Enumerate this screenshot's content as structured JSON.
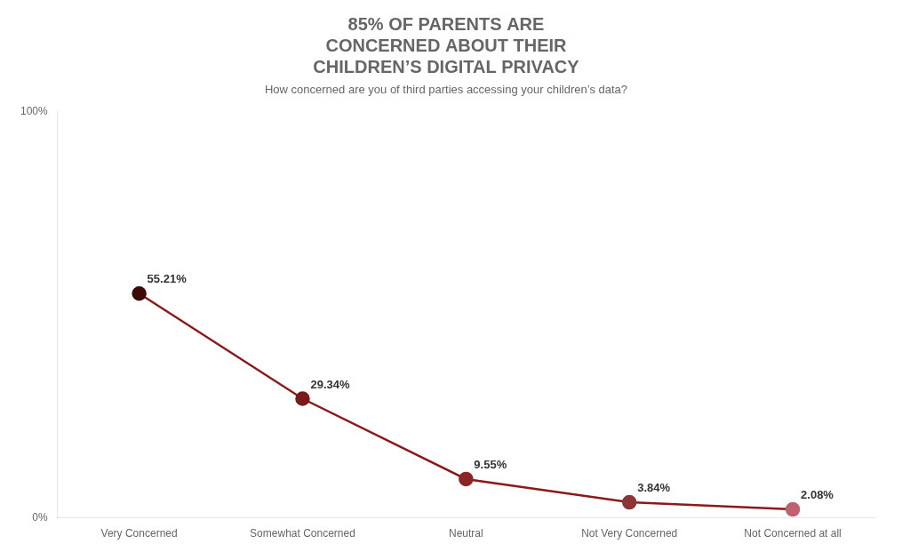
{
  "chart_data": {
    "type": "line",
    "title": "85% OF PARENTS ARE\nCONCERNED ABOUT THEIR\nCHILDREN’S DIGITAL PRIVACY",
    "subtitle": "How concerned are you of third parties accessing your children’s data?",
    "categories": [
      "Very Concerned",
      "Somewhat Concerned",
      "Neutral",
      "Not Very Concerned",
      "Not Concerned at all"
    ],
    "values": [
      55.21,
      29.34,
      9.55,
      3.84,
      2.08
    ],
    "value_labels": [
      "55.21%",
      "29.34%",
      "9.55%",
      "3.84%",
      "2.08%"
    ],
    "data_labels": true,
    "color": "#8b1a1a",
    "colors": [
      "#3d0a0a",
      "#7a1a1a",
      "#8b2525",
      "#8b3535",
      "#c06070"
    ],
    "ylim": [
      0,
      100
    ],
    "yticks": [
      {
        "value": 0,
        "label": "0%"
      },
      {
        "value": 100,
        "label": "100%"
      }
    ],
    "grid": false
  }
}
